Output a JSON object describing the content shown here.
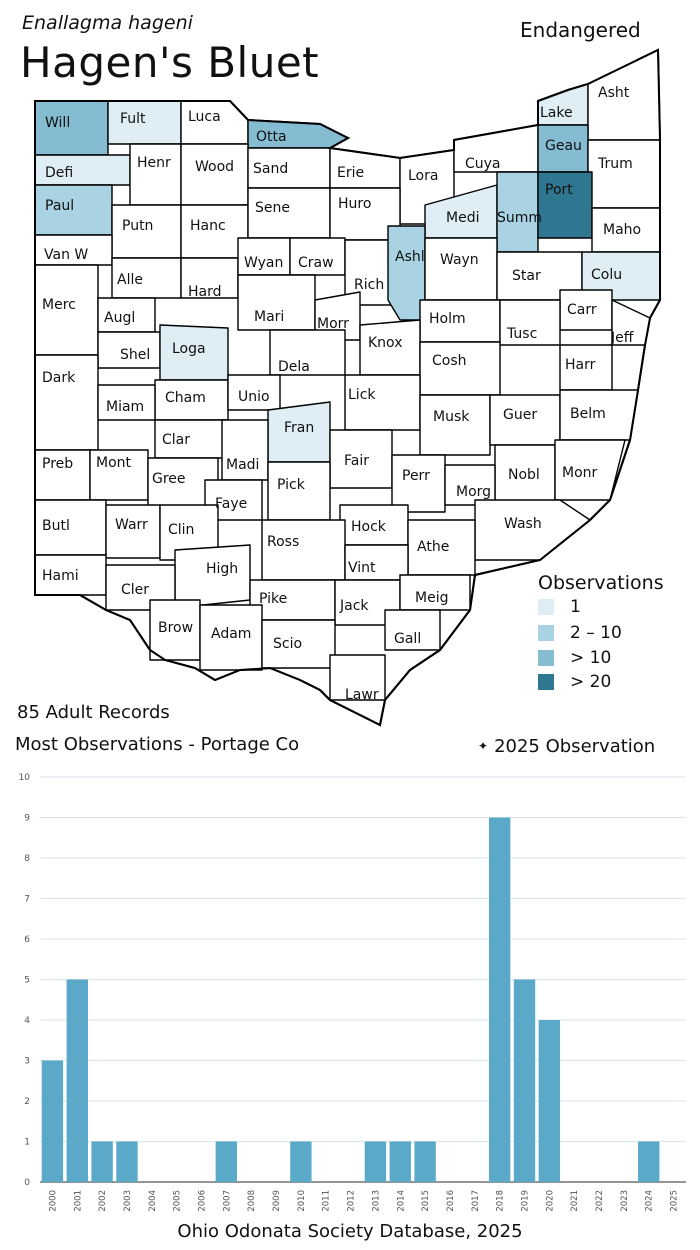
{
  "header": {
    "scientific_name": "Enallagma hageni",
    "common_name": "Hagen's Bluet",
    "status": "Endangered"
  },
  "colors": {
    "none": "#ffffff",
    "obs_1": "#dfeef5",
    "obs_2_10": "#a9d2e3",
    "obs_gt10": "#85bcd2",
    "obs_gt20": "#2f7791",
    "bar": "#5aa9c8",
    "lake": "#a9d2e3"
  },
  "legend": {
    "title": "Observations",
    "items": [
      {
        "label": "1",
        "color_key": "obs_1"
      },
      {
        "label": "2 – 10",
        "color_key": "obs_2_10"
      },
      {
        "label": "> 10",
        "color_key": "obs_gt10"
      },
      {
        "label": "> 20",
        "color_key": "obs_gt20"
      }
    ]
  },
  "map": {
    "counties": [
      {
        "label": "Will",
        "level": "obs_gt10"
      },
      {
        "label": "Fult",
        "level": "obs_1"
      },
      {
        "label": "Luca",
        "level": "none"
      },
      {
        "label": "Otta",
        "level": "obs_gt10"
      },
      {
        "label": "Lake",
        "level": "obs_1"
      },
      {
        "label": "Asht",
        "level": "none"
      },
      {
        "label": "Defi",
        "level": "obs_1"
      },
      {
        "label": "Henr",
        "level": "none"
      },
      {
        "label": "Wood",
        "level": "none"
      },
      {
        "label": "Sand",
        "level": "none"
      },
      {
        "label": "Erie",
        "level": "none"
      },
      {
        "label": "Lora",
        "level": "none"
      },
      {
        "label": "Cuya",
        "level": "none"
      },
      {
        "label": "Geau",
        "level": "obs_gt10"
      },
      {
        "label": "Trum",
        "level": "none"
      },
      {
        "label": "Paul",
        "level": "obs_2_10"
      },
      {
        "label": "Putn",
        "level": "none"
      },
      {
        "label": "Hanc",
        "level": "none"
      },
      {
        "label": "Sene",
        "level": "none"
      },
      {
        "label": "Huro",
        "level": "none"
      },
      {
        "label": "Medi",
        "level": "obs_1"
      },
      {
        "label": "Summ",
        "level": "obs_2_10"
      },
      {
        "label": "Port",
        "level": "obs_gt20"
      },
      {
        "label": "Maho",
        "level": "none"
      },
      {
        "label": "Van W",
        "level": "none"
      },
      {
        "label": "Alle",
        "level": "none"
      },
      {
        "label": "Hard",
        "level": "none"
      },
      {
        "label": "Wyan",
        "level": "none"
      },
      {
        "label": "Craw",
        "level": "none"
      },
      {
        "label": "Rich",
        "level": "none"
      },
      {
        "label": "Ashl",
        "level": "obs_2_10"
      },
      {
        "label": "Wayn",
        "level": "none"
      },
      {
        "label": "Star",
        "level": "none"
      },
      {
        "label": "Colu",
        "level": "obs_1"
      },
      {
        "label": "Merc",
        "level": "none"
      },
      {
        "label": "Augl",
        "level": "none"
      },
      {
        "label": "Mari",
        "level": "none"
      },
      {
        "label": "Morr",
        "level": "none"
      },
      {
        "label": "Holm",
        "level": "none"
      },
      {
        "label": "Carr",
        "level": "none"
      },
      {
        "label": "Tusc",
        "level": "none"
      },
      {
        "label": "Jeff",
        "level": "none"
      },
      {
        "label": "Shel",
        "level": "none"
      },
      {
        "label": "Loga",
        "level": "obs_1"
      },
      {
        "label": "Dela",
        "level": "none"
      },
      {
        "label": "Knox",
        "level": "none"
      },
      {
        "label": "Cosh",
        "level": "none"
      },
      {
        "label": "Harr",
        "level": "none"
      },
      {
        "label": "Dark",
        "level": "none"
      },
      {
        "label": "Cham",
        "level": "none"
      },
      {
        "label": "Unio",
        "level": "none"
      },
      {
        "label": "Lick",
        "level": "none"
      },
      {
        "label": "Miam",
        "level": "none"
      },
      {
        "label": "Musk",
        "level": "none"
      },
      {
        "label": "Guer",
        "level": "none"
      },
      {
        "label": "Belm",
        "level": "none"
      },
      {
        "label": "Clar",
        "level": "none"
      },
      {
        "label": "Fran",
        "level": "obs_1"
      },
      {
        "label": "Preb",
        "level": "none"
      },
      {
        "label": "Mont",
        "level": "none"
      },
      {
        "label": "Madi",
        "level": "none"
      },
      {
        "label": "Fair",
        "level": "none"
      },
      {
        "label": "Perr",
        "level": "none"
      },
      {
        "label": "Nobl",
        "level": "none"
      },
      {
        "label": "Monr",
        "level": "none"
      },
      {
        "label": "Gree",
        "level": "none"
      },
      {
        "label": "Pick",
        "level": "none"
      },
      {
        "label": "Morg",
        "level": "none"
      },
      {
        "label": "Faye",
        "level": "none"
      },
      {
        "label": "Wash",
        "level": "none"
      },
      {
        "label": "Butl",
        "level": "none"
      },
      {
        "label": "Warr",
        "level": "none"
      },
      {
        "label": "Clin",
        "level": "none"
      },
      {
        "label": "Hock",
        "level": "none"
      },
      {
        "label": "Ross",
        "level": "none"
      },
      {
        "label": "Athe",
        "level": "none"
      },
      {
        "label": "High",
        "level": "none"
      },
      {
        "label": "Vint",
        "level": "none"
      },
      {
        "label": "Hami",
        "level": "none"
      },
      {
        "label": "Cler",
        "level": "none"
      },
      {
        "label": "Pike",
        "level": "none"
      },
      {
        "label": "Jack",
        "level": "none"
      },
      {
        "label": "Meig",
        "level": "none"
      },
      {
        "label": "Brow",
        "level": "none"
      },
      {
        "label": "Adam",
        "level": "none"
      },
      {
        "label": "Scio",
        "level": "none"
      },
      {
        "label": "Gall",
        "level": "none"
      },
      {
        "label": "Lawr",
        "level": "none"
      }
    ]
  },
  "summary": {
    "records": "85 Adult Records",
    "most_observations": "Most Observations - Portage Co",
    "current_year_marker": "✦",
    "current_year_note": "2025  Observation"
  },
  "chart_data": {
    "type": "bar",
    "categories": [
      "2000",
      "2001",
      "2002",
      "2003",
      "2004",
      "2005",
      "2006",
      "2007",
      "2008",
      "2009",
      "2010",
      "2011",
      "2012",
      "2013",
      "2014",
      "2015",
      "2016",
      "2017",
      "2018",
      "2019",
      "2020",
      "2021",
      "2022",
      "2023",
      "2024",
      "2025"
    ],
    "values": [
      3,
      5,
      1,
      1,
      0,
      0,
      0,
      1,
      0,
      0,
      1,
      0,
      0,
      1,
      1,
      1,
      0,
      0,
      9,
      5,
      4,
      0,
      0,
      0,
      1,
      0
    ],
    "ylim": [
      0,
      10
    ],
    "yticks": [
      0,
      1,
      2,
      3,
      4,
      5,
      6,
      7,
      8,
      9,
      10
    ],
    "grid": true,
    "title": "",
    "xlabel": "",
    "ylabel": ""
  },
  "footer": {
    "source": "Ohio Odonata Society Database, 2025"
  }
}
